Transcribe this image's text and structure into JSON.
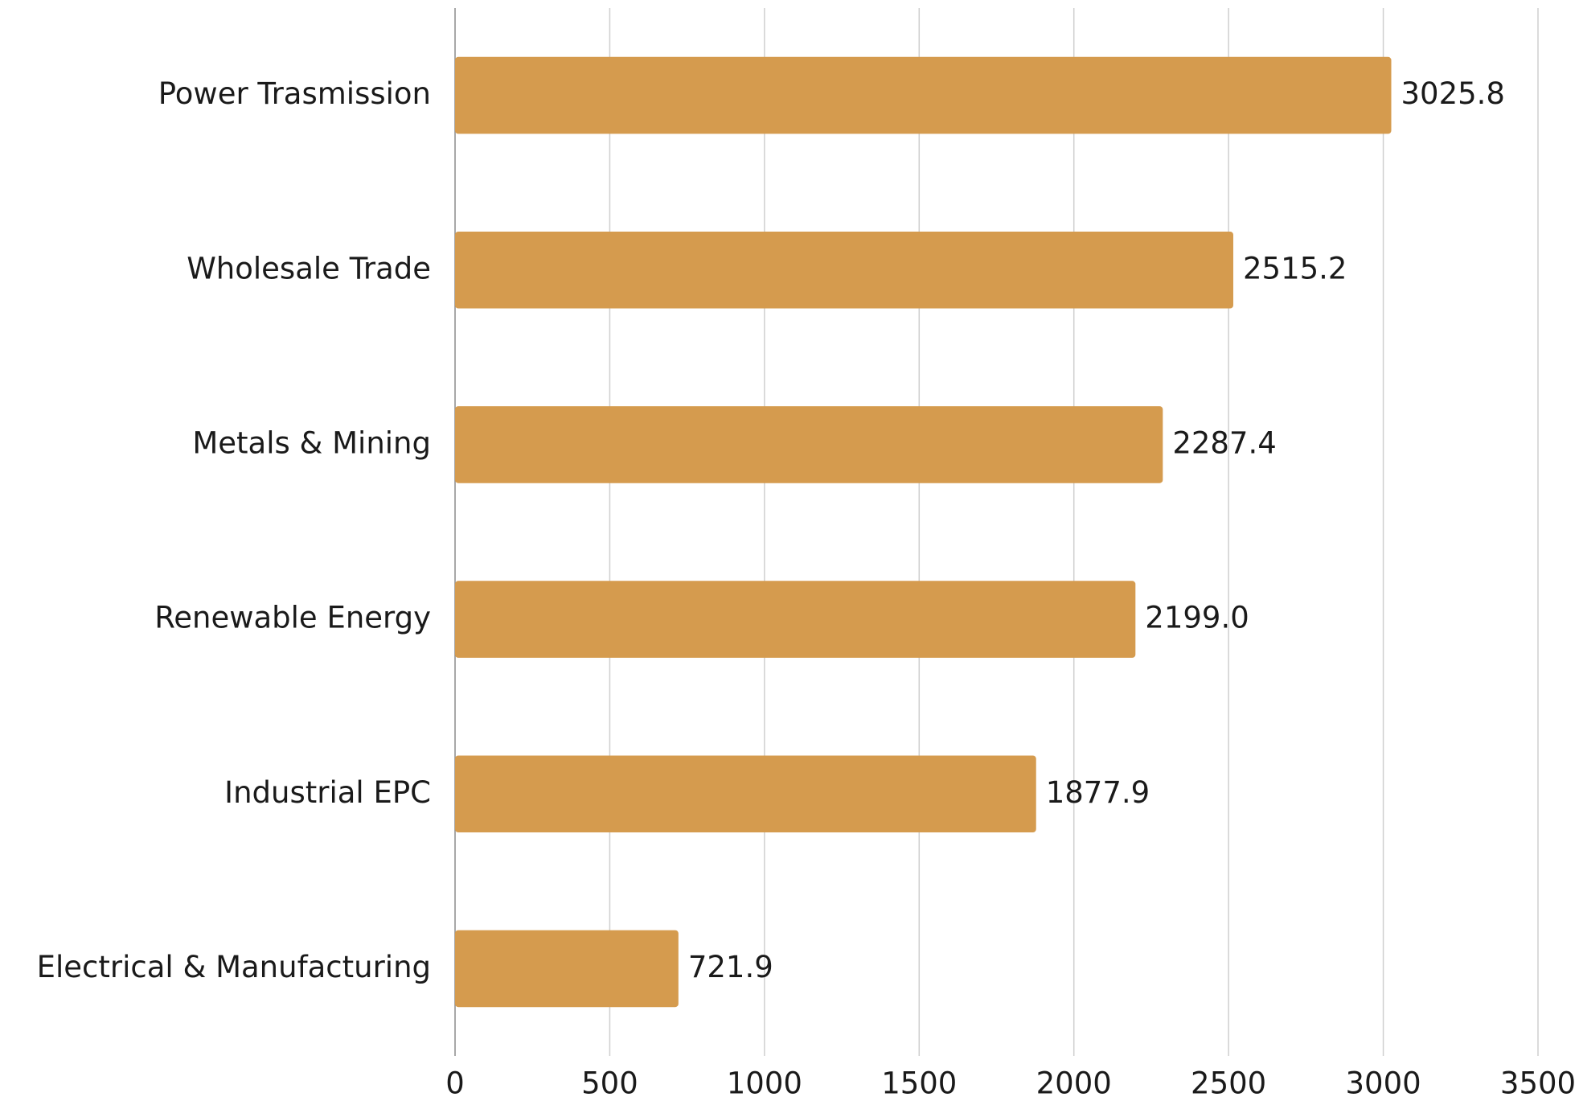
{
  "chart_data": {
    "type": "bar",
    "orientation": "horizontal",
    "categories": [
      "Power Trasmission",
      "Wholesale Trade",
      "Metals & Mining",
      "Renewable Energy",
      "Industrial EPC",
      "Electrical & Manufacturing"
    ],
    "values": [
      3025.8,
      2515.2,
      2287.4,
      2199.0,
      1877.9,
      721.9
    ],
    "value_labels": [
      "3025.8",
      "2515.2",
      "2287.4",
      "2199.0",
      "1877.9",
      "721.9"
    ],
    "color": "#d59b4e",
    "xlim": [
      0,
      3500
    ],
    "xticks": [
      0,
      500,
      1000,
      1500,
      2000,
      2500,
      3000,
      3500
    ],
    "grid": true
  }
}
